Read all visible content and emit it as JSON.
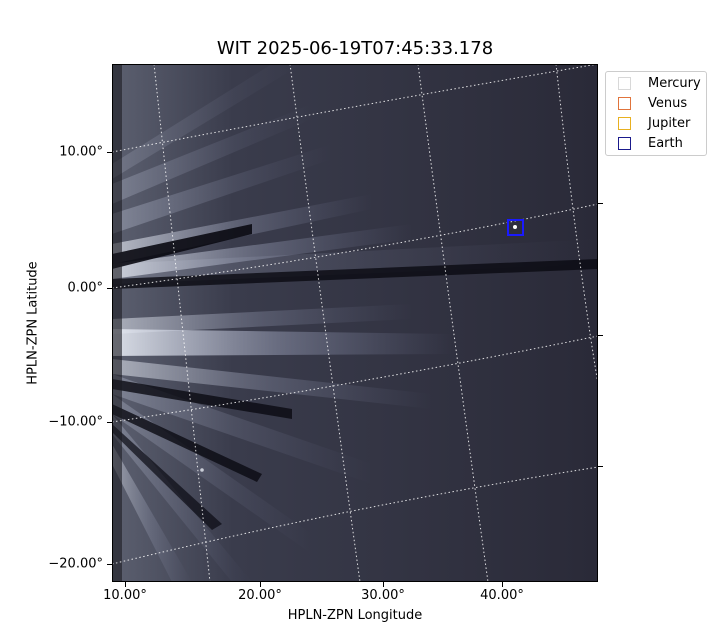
{
  "figure": {
    "title": "WIT 2025-06-19T07:45:33.178",
    "xlabel": "HPLN-ZPN Longitude",
    "ylabel": "HPLN-ZPN Latitude"
  },
  "axes": {
    "x_ticks": [
      "10.00°",
      "20.00°",
      "30.00°",
      "40.00°"
    ],
    "y_ticks": [
      "10.00°",
      "0.00°",
      "−10.00°",
      "−20.00°"
    ]
  },
  "legend": {
    "items": [
      {
        "label": "Mercury",
        "color": "#d8d8d8"
      },
      {
        "label": "Venus",
        "color": "#e0743c"
      },
      {
        "label": "Jupiter",
        "color": "#e8b020"
      },
      {
        "label": "Earth",
        "color": "#1a1a8c"
      }
    ]
  },
  "markers": {
    "earth_color": "#1a1aff"
  },
  "colors": {
    "background": "#2a2a38",
    "streamer": "#c8cedc",
    "grid": "#ffffff"
  }
}
